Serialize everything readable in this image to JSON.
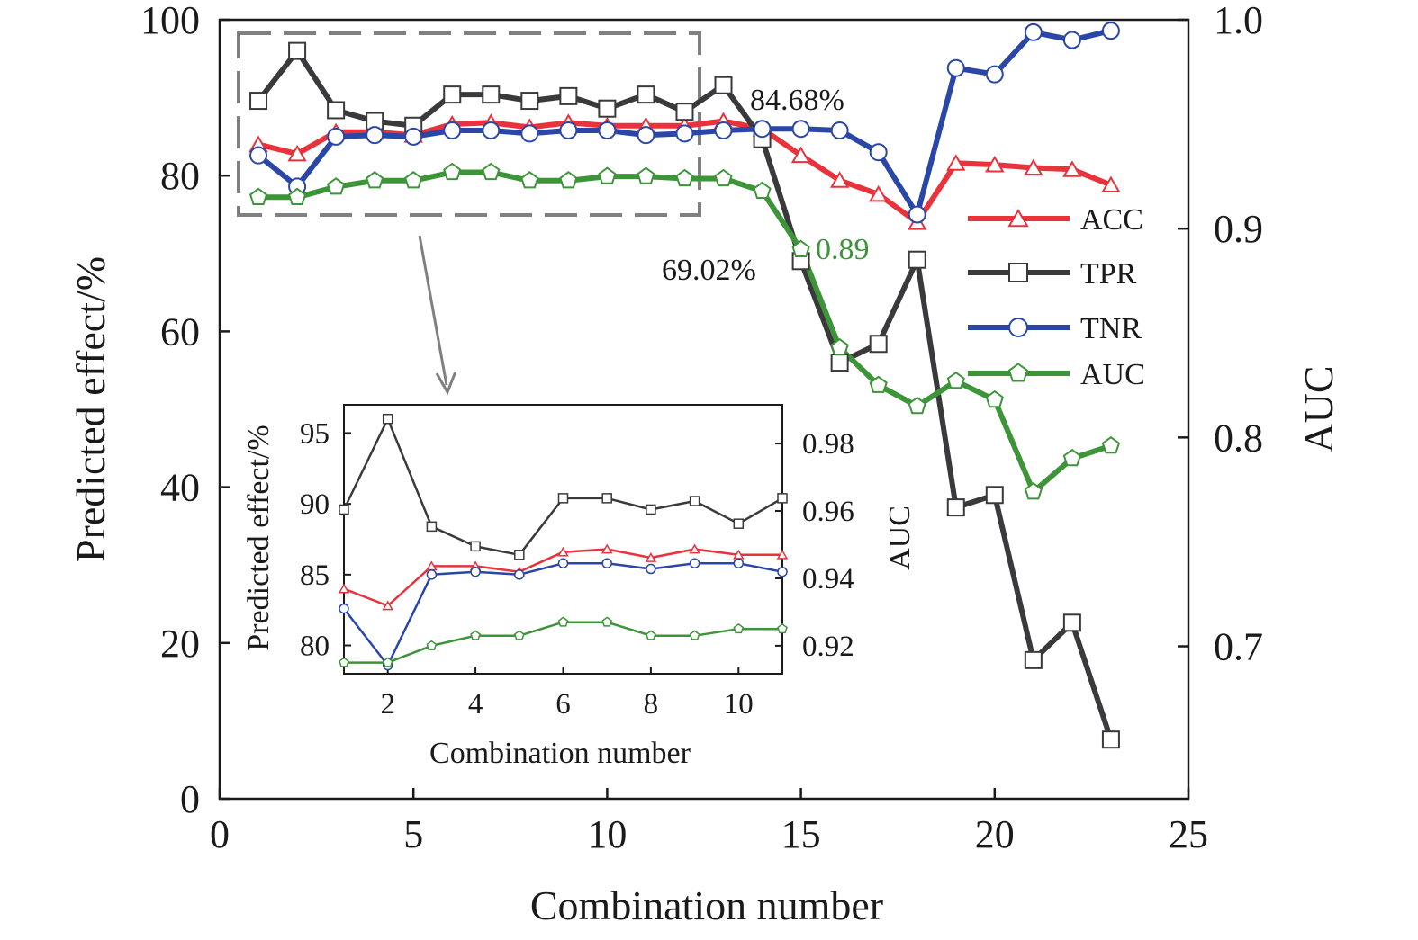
{
  "chart_data": {
    "type": "line",
    "xlabel": "Combination number",
    "ylabel": "Predicted effect/%",
    "y2label": "AUC",
    "xlim": [
      0,
      25
    ],
    "ylim": [
      0,
      100
    ],
    "y2lim": [
      0.627,
      1.0
    ],
    "xticks": [
      "0",
      "5",
      "10",
      "15",
      "20",
      "25"
    ],
    "yticks": [
      "0",
      "20",
      "40",
      "60",
      "80",
      "100"
    ],
    "y2ticks": [
      "0.7",
      "0.8",
      "0.9",
      "1.0"
    ],
    "x": [
      1,
      2,
      3,
      4,
      5,
      6,
      7,
      8,
      9,
      10,
      11,
      12,
      13,
      14,
      15,
      16,
      17,
      18,
      19,
      20,
      21,
      22,
      23
    ],
    "series": [
      {
        "name": "ACC",
        "axis": "left",
        "marker": "triangle",
        "color": "#e8323c",
        "values": [
          84.0,
          82.8,
          85.6,
          85.6,
          85.2,
          86.6,
          86.8,
          86.2,
          86.8,
          86.4,
          86.4,
          86.4,
          87.0,
          86.0,
          82.6,
          79.4,
          77.6,
          74.0,
          81.6,
          81.4,
          81.0,
          80.8,
          78.8
        ]
      },
      {
        "name": "TPR",
        "axis": "left",
        "marker": "square",
        "color": "#3a3a3d",
        "values": [
          89.6,
          96.0,
          88.4,
          87.0,
          86.4,
          90.4,
          90.4,
          89.6,
          90.2,
          88.6,
          90.4,
          88.2,
          91.6,
          84.68,
          69.02,
          56.0,
          58.4,
          69.2,
          37.4,
          39.0,
          17.8,
          22.6,
          7.6
        ]
      },
      {
        "name": "TNR",
        "axis": "left",
        "marker": "circle",
        "color": "#2a47a8",
        "values": [
          82.6,
          78.6,
          85.0,
          85.2,
          85.0,
          85.8,
          85.8,
          85.4,
          85.8,
          85.8,
          85.2,
          85.4,
          85.8,
          86.0,
          86.0,
          85.8,
          83.0,
          75.0,
          93.8,
          93.0,
          98.4,
          97.4,
          98.6
        ]
      },
      {
        "name": "AUC",
        "axis": "right",
        "marker": "pentagon",
        "color": "#3d9439",
        "values": [
          0.915,
          0.915,
          0.92,
          0.923,
          0.923,
          0.927,
          0.927,
          0.923,
          0.923,
          0.925,
          0.925,
          0.924,
          0.924,
          0.918,
          0.89,
          0.843,
          0.825,
          0.815,
          0.827,
          0.818,
          0.774,
          0.79,
          0.796
        ]
      }
    ],
    "annotations": [
      {
        "text": "84.68%",
        "x": 14,
        "y": 84.68,
        "color": "#1a1a1a"
      },
      {
        "text": "69.02%",
        "x": 15,
        "y": 69.02,
        "color": "#1a1a1a"
      },
      {
        "text": "0.89",
        "x": 15,
        "y": 0.89,
        "axis": "right",
        "color": "#3d9439"
      }
    ],
    "legend": "right",
    "highlight_box": {
      "x_range": [
        1,
        12
      ],
      "style": "dashed"
    },
    "inset": {
      "type": "line",
      "xlabel": "Combination number",
      "ylabel": "Predicted effect/%",
      "y2label": "AUC",
      "xlim": [
        1,
        11
      ],
      "ylim": [
        78,
        97
      ],
      "y2lim": [
        0.9117,
        0.9915
      ],
      "xticks": [
        "2",
        "4",
        "6",
        "8",
        "10"
      ],
      "yticks": [
        "80",
        "85",
        "90",
        "95"
      ],
      "y2ticks": [
        "0.92",
        "0.94",
        "0.96",
        "0.98"
      ],
      "x": [
        1,
        2,
        3,
        4,
        5,
        6,
        7,
        8,
        9,
        10,
        11
      ]
    }
  }
}
